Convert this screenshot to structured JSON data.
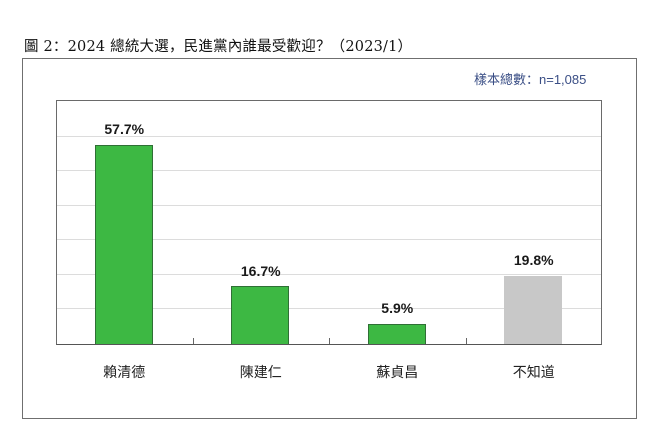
{
  "figure": {
    "title": "圖 2：2024 總統大選，民進黨內誰最受歡迎？（2023/1）",
    "sample_note": "樣本總數：n=1,085"
  },
  "colors": {
    "green_bar": "#3db843",
    "green_border": "#2f6f35",
    "gray_bar": "#c8c8c8",
    "sample_text": "#3b4f86",
    "gridline": "#dcdcdc"
  },
  "chart_data": {
    "type": "bar",
    "title": "圖 2：2024 總統大選，民進黨內誰最受歡迎？（2023/1）",
    "subtitle": "樣本總數：n=1,085",
    "categories": [
      "賴清德",
      "陳建仁",
      "蘇貞昌",
      "不知道"
    ],
    "values": [
      57.7,
      16.7,
      5.9,
      19.8
    ],
    "value_labels": [
      "57.7%",
      "16.7%",
      "5.9%",
      "19.8%"
    ],
    "bar_colors": [
      "#3db843",
      "#3db843",
      "#3db843",
      "#c8c8c8"
    ],
    "xlabel": "",
    "ylabel": "",
    "ylim": [
      0,
      70
    ],
    "y_ticks_visible": false,
    "gridlines": [
      10,
      20,
      30,
      40,
      50,
      60
    ],
    "grid": true,
    "legend": "none"
  }
}
